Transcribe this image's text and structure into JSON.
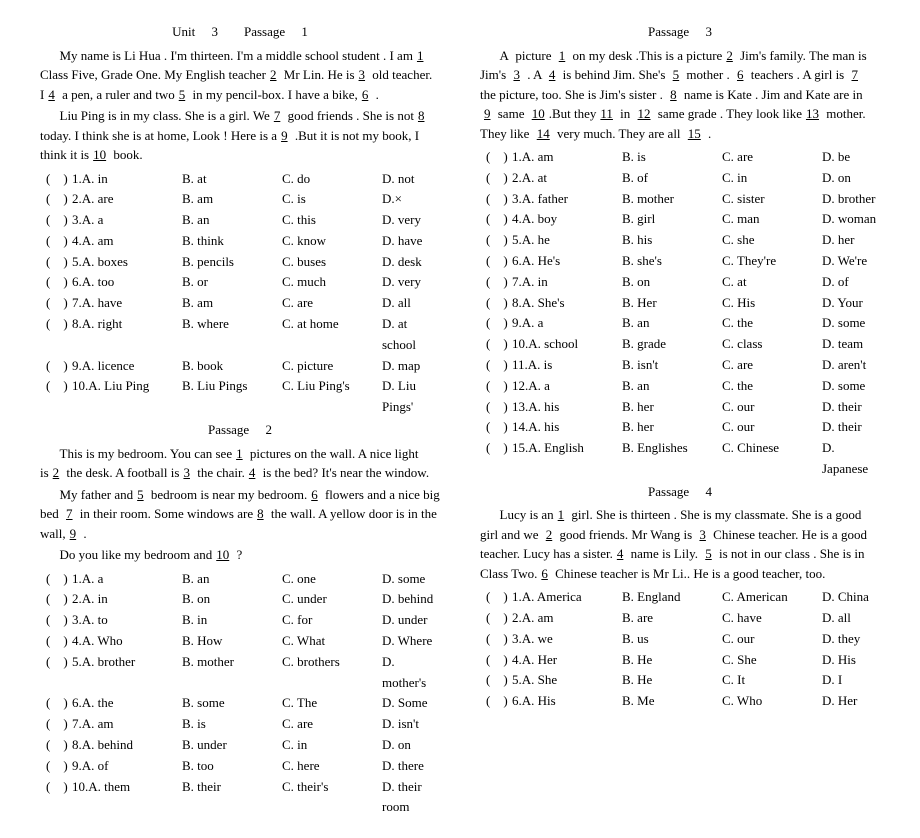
{
  "left": {
    "p1": {
      "title": "Unit  3  Passage  1",
      "text": [
        "My name is Li Hua . I'm thirteen. I'm a middle school student . I am",
        "Class Five, Grade One. My English teacher",
        "Mr Lin. He is",
        "old teacher. I",
        "a pen, a ruler and two",
        "in my pencil-box. I have a bike,",
        ".",
        "Liu Ping is in my class. She is a girl. We",
        "good friends . She is not",
        "today. I think she is at home, Look ! Here is a",
        ".But it is not my book, I think it is",
        "book."
      ],
      "blanks": [
        "1",
        "2",
        "3",
        "4",
        "5",
        "6",
        "7",
        "8",
        "9",
        "10"
      ],
      "options": [
        {
          "n": "1",
          "a": "A. in",
          "b": "B. at",
          "c": "C. do",
          "d": "D. not"
        },
        {
          "n": "2",
          "a": "A. are",
          "b": "B. am",
          "c": "C. is",
          "d": "D.×"
        },
        {
          "n": "3",
          "a": "A. a",
          "b": "B. an",
          "c": "C. this",
          "d": "D. very"
        },
        {
          "n": "4",
          "a": "A. am",
          "b": "B. think",
          "c": "C. know",
          "d": "D. have"
        },
        {
          "n": "5",
          "a": "A. boxes",
          "b": "B. pencils",
          "c": "C. buses",
          "d": "D. desk"
        },
        {
          "n": "6",
          "a": "A. too",
          "b": "B. or",
          "c": "C. much",
          "d": "D. very"
        },
        {
          "n": "7",
          "a": "A. have",
          "b": "B. am",
          "c": "C. are",
          "d": "D. all"
        },
        {
          "n": "8",
          "a": "A. right",
          "b": "B. where",
          "c": "C. at home",
          "d": "D. at school"
        },
        {
          "n": "9",
          "a": "A. licence",
          "b": "B. book",
          "c": "C. picture",
          "d": "D. map"
        },
        {
          "n": "10",
          "a": "A. Liu Ping",
          "b": "B. Liu Pings",
          "c": "C. Liu Ping's",
          "d": "D. Liu Pings'"
        }
      ]
    },
    "p2": {
      "title": "Passage  2",
      "text": [
        "This is my bedroom. You can see",
        "pictures on the wall. A nice light is",
        "the desk. A football is",
        "the chair.",
        "is the bed? It's near the window.",
        "My father and",
        "bedroom is near my bedroom.",
        "flowers and a nice big bed",
        "in their room. Some windows are",
        "the wall. A yellow door is in the wall,",
        ".",
        "Do you like my bedroom and",
        "?"
      ],
      "blanks": [
        "1",
        "2",
        "3",
        "4",
        "5",
        "6",
        "7",
        "8",
        "9",
        "10"
      ],
      "options": [
        {
          "n": "1",
          "a": "A. a",
          "b": "B. an",
          "c": "C. one",
          "d": "D. some"
        },
        {
          "n": "2",
          "a": "A. in",
          "b": "B. on",
          "c": "C. under",
          "d": "D. behind"
        },
        {
          "n": "3",
          "a": "A. to",
          "b": "B. in",
          "c": "C. for",
          "d": "D. under"
        },
        {
          "n": "4",
          "a": "A. Who",
          "b": "B. How",
          "c": "C. What",
          "d": "D. Where"
        },
        {
          "n": "5",
          "a": "A. brother",
          "b": "B. mother",
          "c": "C. brothers",
          "d": "D. mother's"
        },
        {
          "n": "6",
          "a": "A. the",
          "b": "B. some",
          "c": "C. The",
          "d": "D. Some"
        },
        {
          "n": "7",
          "a": "A. am",
          "b": "B. is",
          "c": "C. are",
          "d": "D. isn't"
        },
        {
          "n": "8",
          "a": "A. behind",
          "b": "B. under",
          "c": "C. in",
          "d": "D. on"
        },
        {
          "n": "9",
          "a": "A. of",
          "b": "B. too",
          "c": "C. here",
          "d": "D. there"
        },
        {
          "n": "10",
          "a": "A. them",
          "b": "B. their",
          "c": "C. their's",
          "d": "D. their room"
        }
      ]
    }
  },
  "right": {
    "p3": {
      "title": "Passage  3",
      "options": [
        {
          "n": "1",
          "a": "A. am",
          "b": "B. is",
          "c": "C. are",
          "d": "D. be"
        },
        {
          "n": "2",
          "a": "A. at",
          "b": "B. of",
          "c": "C. in",
          "d": "D. on"
        },
        {
          "n": "3",
          "a": "A. father",
          "b": "B. mother",
          "c": "C. sister",
          "d": "D. brother"
        },
        {
          "n": "4",
          "a": "A. boy",
          "b": "B. girl",
          "c": "C. man",
          "d": "D. woman"
        },
        {
          "n": "5",
          "a": "A. he",
          "b": "B. his",
          "c": "C. she",
          "d": "D. her"
        },
        {
          "n": "6",
          "a": "A. He's",
          "b": "B. she's",
          "c": "C. They're",
          "d": "D. We're"
        },
        {
          "n": "7",
          "a": "A. in",
          "b": "B. on",
          "c": "C. at",
          "d": "D. of"
        },
        {
          "n": "8",
          "a": "A. She's",
          "b": "B. Her",
          "c": "C. His",
          "d": "D. Your"
        },
        {
          "n": "9",
          "a": "A. a",
          "b": "B. an",
          "c": "C. the",
          "d": "D. some"
        },
        {
          "n": "10",
          "a": "A. school",
          "b": "B. grade",
          "c": "C. class",
          "d": "D. team"
        },
        {
          "n": "11",
          "a": "A. is",
          "b": "B. isn't",
          "c": "C. are",
          "d": "D. aren't"
        },
        {
          "n": "12",
          "a": "A. a",
          "b": "B. an",
          "c": "C. the",
          "d": "D. some"
        },
        {
          "n": "13",
          "a": "A. his",
          "b": "B. her",
          "c": "C. our",
          "d": "D. their"
        },
        {
          "n": "14",
          "a": "A. his",
          "b": "B. her",
          "c": "C. our",
          "d": "D. their"
        },
        {
          "n": "15",
          "a": "A. English",
          "b": "B. Englishes",
          "c": "C. Chinese",
          "d": "D. Japanese"
        }
      ]
    },
    "p4": {
      "title": "Passage  4",
      "options": [
        {
          "n": "1",
          "a": "A. America",
          "b": "B. England",
          "c": "C. American",
          "d": "D. China"
        },
        {
          "n": "2",
          "a": "A. am",
          "b": "B. are",
          "c": "C. have",
          "d": "D. all"
        },
        {
          "n": "3",
          "a": "A. we",
          "b": "B. us",
          "c": "C. our",
          "d": "D. they"
        },
        {
          "n": "4",
          "a": "A. Her",
          "b": "B. He",
          "c": "C. She",
          "d": "D. His"
        },
        {
          "n": "5",
          "a": "A. She",
          "b": "B. He",
          "c": "C. It",
          "d": "D. I"
        },
        {
          "n": "6",
          "a": "A. His",
          "b": "B. Me",
          "c": "C. Who",
          "d": "D. Her"
        }
      ]
    }
  }
}
